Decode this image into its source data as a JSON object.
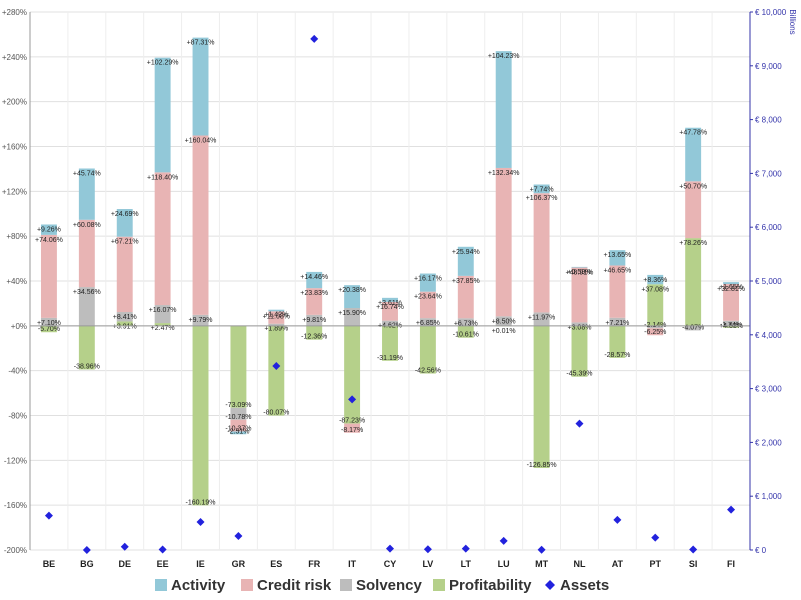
{
  "chart_data": {
    "type": "bar",
    "stacked": true,
    "categories": [
      "BE",
      "BG",
      "DE",
      "EE",
      "IE",
      "GR",
      "ES",
      "FR",
      "IT",
      "CY",
      "LV",
      "LT",
      "LU",
      "MT",
      "NL",
      "AT",
      "PT",
      "SI",
      "FI"
    ],
    "series": [
      {
        "name": "Profitability",
        "color": "#b5d08a",
        "values": [
          -5.7,
          -38.96,
          3.91,
          2.47,
          -160.19,
          -73.09,
          -80.07,
          -12.36,
          -87.23,
          -31.19,
          -42.56,
          -10.61,
          0.01,
          -126.85,
          -45.39,
          -28.57,
          37.08,
          78.26,
          -1.74
        ]
      },
      {
        "name": "Solvency",
        "color": "#bdbdbd",
        "values": [
          7.1,
          34.56,
          8.41,
          16.07,
          9.79,
          -10.78,
          1.89,
          9.81,
          15.9,
          4.62,
          6.85,
          6.73,
          8.5,
          11.97,
          3.08,
          7.21,
          -2.14,
          -4.07,
          4.53
        ]
      },
      {
        "name": "Credit risk",
        "color": "#e8b4b4",
        "values": [
          74.06,
          60.08,
          67.21,
          118.4,
          160.04,
          -10.37,
          11.08,
          23.83,
          -8.17,
          16.74,
          23.64,
          37.85,
          132.34,
          106.37,
          48.91,
          46.65,
          -6.25,
          50.7,
          32.81
        ]
      },
      {
        "name": "Activity",
        "color": "#92c8d8",
        "values": [
          9.26,
          45.74,
          24.69,
          102.29,
          87.31,
          -2.51,
          1.42,
          14.46,
          20.38,
          3.61,
          16.17,
          25.94,
          104.23,
          7.74,
          0.59,
          13.65,
          8.36,
          47.78,
          1.65
        ]
      }
    ],
    "data_labels": [
      [
        "-5.70%",
        "-38.96%",
        "+3.91%",
        "+2.47%",
        "-160.19%",
        "-73.09%",
        "-80.07%",
        "-12.36%",
        "-87.23%",
        "-31.19%",
        "-42.56%",
        "-10.61%",
        "+0.01%",
        "-126.85%",
        "-45.39%",
        "-28.57%",
        "+37.08%",
        "+78.26%",
        "-1.74%"
      ],
      [
        "+7.10%",
        "+34.56%",
        "+8.41%",
        "+16.07%",
        "+9.79%",
        "-10.78%",
        "+1.89%",
        "+9.81%",
        "+15.90%",
        "+4.62%",
        "+6.85%",
        "+6.73%",
        "+8.50%",
        "+11.97%",
        "+3.08%",
        "+7.21%",
        "-2.14%",
        "-4.07%",
        "+4.53%"
      ],
      [
        "+74.06%",
        "+60.08%",
        "+67.21%",
        "+118.40%",
        "+160.04%",
        "-10.37%",
        "+11.08%",
        "+23.83%",
        "-8.17%",
        "+16.74%",
        "+23.64%",
        "+37.85%",
        "+132.34%",
        "+106.37%",
        "+48.91%",
        "+46.65%",
        "-6.25%",
        "+50.70%",
        "+32.81%"
      ],
      [
        "+9.26%",
        "+45.74%",
        "+24.69%",
        "+102.29%",
        "+87.31%",
        "-2.51%",
        "+1.42%",
        "+14.46%",
        "+20.38%",
        "+3.61%",
        "+16.17%",
        "+25.94%",
        "+104.23%",
        "+7.74%",
        "+0.59%",
        "+13.65%",
        "+8.36%",
        "+47.78%",
        "+1.65%"
      ]
    ],
    "assets": {
      "name": "Assets",
      "color": "#2222dd",
      "values": [
        640,
        0,
        60,
        10,
        520,
        260,
        3420,
        9500,
        2800,
        25,
        15,
        25,
        170,
        5,
        2350,
        560,
        230,
        10,
        750
      ]
    },
    "left_axis": {
      "ylim": [
        -200,
        280
      ],
      "step": 40,
      "tick_labels": [
        "-200%",
        "-160%",
        "-120%",
        "-80%",
        "-40%",
        "+0%",
        "+40%",
        "+80%",
        "+120%",
        "+160%",
        "+200%",
        "+240%",
        "+280%"
      ]
    },
    "right_axis": {
      "ylim": [
        0,
        10000
      ],
      "step": 1000,
      "tick_labels": [
        "€ 0",
        "€ 1,000",
        "€ 2,000",
        "€ 3,000",
        "€ 4,000",
        "€ 5,000",
        "€ 6,000",
        "€ 7,000",
        "€ 8,000",
        "€ 9,000",
        "€ 10,000"
      ],
      "unit_label": "Billions"
    },
    "grid": "horizontal",
    "legend": {
      "position": "bottom",
      "items": [
        "Activity",
        "Credit risk",
        "Solvency",
        "Profitability",
        "Assets"
      ]
    }
  }
}
